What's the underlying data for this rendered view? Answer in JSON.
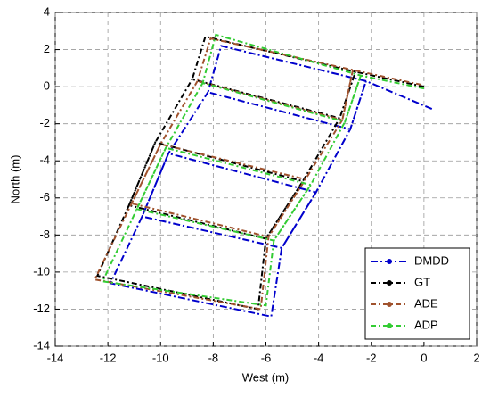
{
  "chart_data": {
    "type": "line",
    "x_label": "West (m)",
    "y_label": "North (m)",
    "xlim": [
      -14,
      2
    ],
    "ylim": [
      -14,
      4
    ],
    "xticks": [
      -14,
      -12,
      -10,
      -8,
      -6,
      -4,
      -2,
      0,
      2
    ],
    "yticks": [
      -14,
      -12,
      -10,
      -8,
      -6,
      -4,
      -2,
      0,
      2,
      4
    ],
    "grid": true,
    "legend": "lower right",
    "series": [
      {
        "name": "DMDD",
        "color": "#0000cc",
        "x": [
          0.3,
          -2.2,
          -7.7,
          -8.2,
          -2.8,
          -2.2,
          -2.8,
          -4.1,
          -9.7,
          -10.7,
          -5.4,
          -4.1,
          -5.4,
          -5.8,
          -11.9,
          -10.7,
          -9.7,
          -8.2
        ],
        "y": [
          -1.2,
          0.3,
          2.2,
          -0.3,
          -2.3,
          0.3,
          -2.3,
          -5.7,
          -3.6,
          -7.0,
          -8.7,
          -5.7,
          -8.7,
          -12.4,
          -10.6,
          -7.0,
          -3.6,
          -0.3
        ]
      },
      {
        "name": "GT",
        "color": "#000000",
        "x": [
          0,
          -2.6,
          -8.3,
          -8.8,
          -3.2,
          -2.6,
          -3.2,
          -4.6,
          -10.2,
          -11.2,
          -6.0,
          -4.6,
          -6.0,
          -6.3,
          -12.4,
          -11.2,
          -10.2,
          -8.8
        ],
        "y": [
          0,
          0.8,
          2.7,
          0.4,
          -1.7,
          0.8,
          -1.7,
          -5.1,
          -3.0,
          -6.4,
          -8.2,
          -5.1,
          -8.2,
          -12.0,
          -10.2,
          -6.4,
          -3.0,
          0.4
        ]
      },
      {
        "name": "ADE",
        "color": "#a0522d",
        "x": [
          -0.1,
          -2.7,
          -8.1,
          -8.6,
          -3.1,
          -2.7,
          -3.1,
          -4.5,
          -10.0,
          -11.1,
          -5.9,
          -4.5,
          -5.9,
          -6.2,
          -12.5,
          -11.1,
          -10.0,
          -8.6
        ],
        "y": [
          0.1,
          0.9,
          2.6,
          0.3,
          -1.8,
          0.9,
          -1.8,
          -5.0,
          -3.1,
          -6.3,
          -8.1,
          -5.0,
          -8.1,
          -12.0,
          -10.4,
          -6.3,
          -3.1,
          0.3
        ]
      },
      {
        "name": "ADP",
        "color": "#33cc33",
        "x": [
          0,
          -2.4,
          -7.9,
          -8.4,
          -3.0,
          -2.4,
          -3.0,
          -4.3,
          -9.8,
          -10.9,
          -5.7,
          -4.3,
          -5.7,
          -6.0,
          -12.2,
          -10.9,
          -9.8,
          -8.4
        ],
        "y": [
          -0.1,
          0.6,
          2.8,
          0.2,
          -1.9,
          0.6,
          -1.9,
          -5.3,
          -3.3,
          -6.6,
          -8.3,
          -5.3,
          -8.3,
          -11.8,
          -10.5,
          -6.6,
          -3.3,
          0.2
        ]
      }
    ]
  }
}
